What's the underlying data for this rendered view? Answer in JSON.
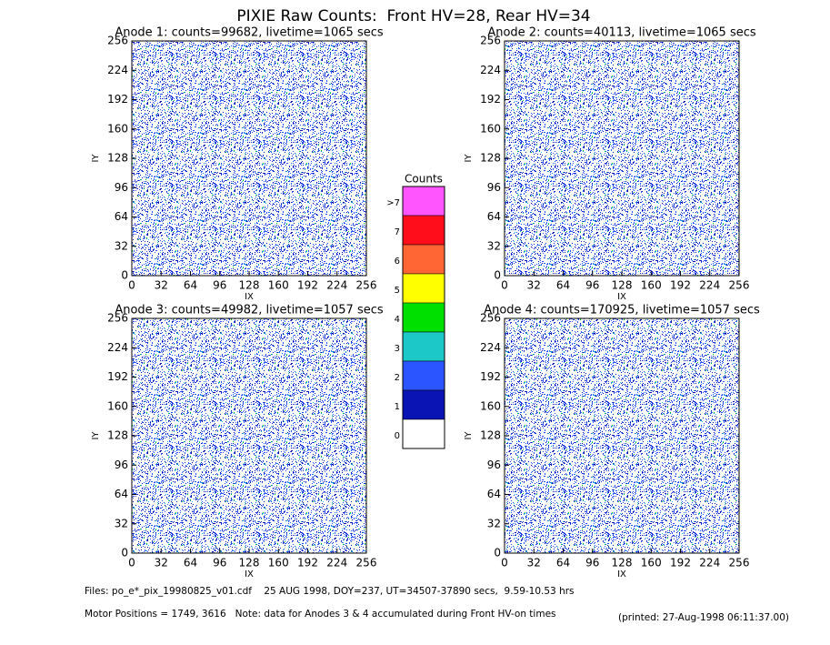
{
  "title": "PIXIE Raw Counts:  Front HV=28, Rear HV=34",
  "chart_data": [
    {
      "type": "image",
      "title": "Anode 1: counts=99682, livetime=1065 secs",
      "xlabel": "IX",
      "ylabel": "IY",
      "xlim": [
        0,
        256
      ],
      "ylim": [
        0,
        256
      ],
      "xticks": [
        0,
        32,
        64,
        96,
        128,
        160,
        192,
        224,
        256
      ],
      "yticks": [
        0,
        32,
        64,
        96,
        128,
        160,
        192,
        224,
        256
      ]
    },
    {
      "type": "image",
      "title": "Anode 2: counts=40113, livetime=1065 secs",
      "xlabel": "IX",
      "ylabel": "IY",
      "xlim": [
        0,
        256
      ],
      "ylim": [
        0,
        256
      ],
      "xticks": [
        0,
        32,
        64,
        96,
        128,
        160,
        192,
        224,
        256
      ],
      "yticks": [
        0,
        32,
        64,
        96,
        128,
        160,
        192,
        224,
        256
      ]
    },
    {
      "type": "image",
      "title": "Anode 3: counts=49982, livetime=1057 secs",
      "xlabel": "IX",
      "ylabel": "IY",
      "xlim": [
        0,
        256
      ],
      "ylim": [
        0,
        256
      ],
      "xticks": [
        0,
        32,
        64,
        96,
        128,
        160,
        192,
        224,
        256
      ],
      "yticks": [
        0,
        32,
        64,
        96,
        128,
        160,
        192,
        224,
        256
      ]
    },
    {
      "type": "image",
      "title": "Anode 4: counts=170925, livetime=1057 secs",
      "xlabel": "IX",
      "ylabel": "IY",
      "xlim": [
        0,
        256
      ],
      "ylim": [
        0,
        256
      ],
      "xticks": [
        0,
        32,
        64,
        96,
        128,
        160,
        192,
        224,
        256
      ],
      "yticks": [
        0,
        32,
        64,
        96,
        128,
        160,
        192,
        224,
        256
      ]
    }
  ],
  "colorbar": {
    "title": "Counts",
    "labels": [
      ">7",
      "7",
      "6",
      "5",
      "4",
      "3",
      "2",
      "1",
      "0"
    ],
    "colors": [
      "#ff55ff",
      "#ff0d1a",
      "#ff6633",
      "#ffff00",
      "#00e000",
      "#1cc8c8",
      "#2a55ff",
      "#0a14b4",
      "#ffffff"
    ]
  },
  "footer": {
    "files": "Files: po_e*_pix_19980825_v01.cdf    25 AUG 1998, DOY=237, UT=34507-37890 secs,  9.59-10.53 hrs",
    "motor": "Motor Positions = 1749, 3616   Note: data for Anodes 3 & 4 accumulated during Front HV-on times",
    "printed": "(printed: 27-Aug-1998 06:11:37.00)"
  }
}
